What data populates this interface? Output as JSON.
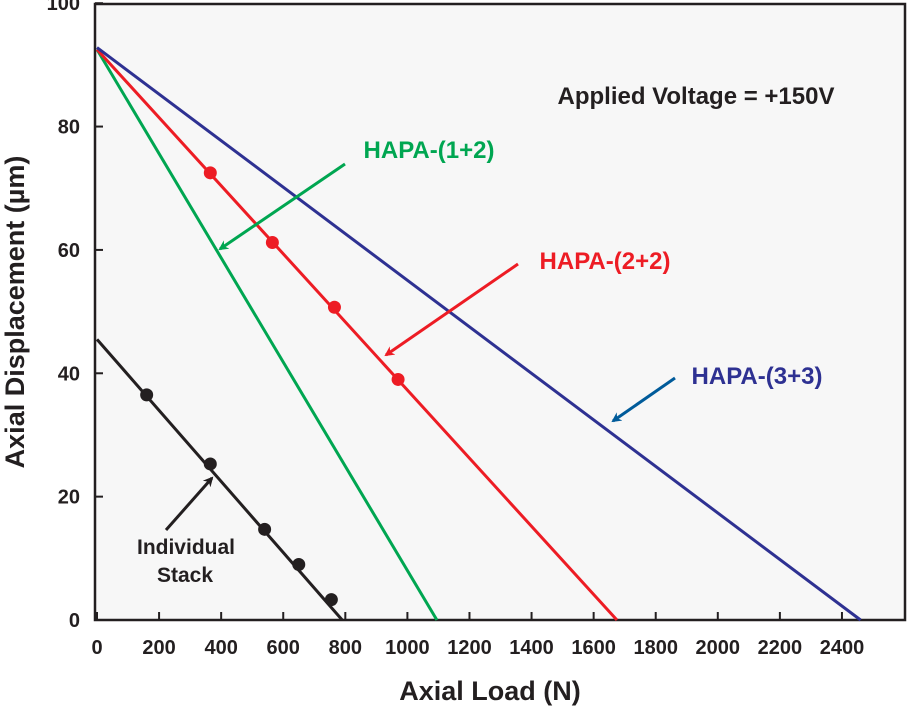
{
  "chart_data": {
    "type": "line",
    "title": "",
    "xlabel": "Axial Load (N)",
    "ylabel": "Axial Displacement (µm)",
    "xlim": [
      0,
      2500
    ],
    "ylim": [
      0,
      100
    ],
    "xticks": [
      0,
      200,
      400,
      600,
      800,
      1000,
      1200,
      1400,
      1600,
      1800,
      2000,
      2200,
      2400
    ],
    "yticks": [
      0,
      20,
      40,
      60,
      80,
      100
    ],
    "grid": false,
    "legend": "none",
    "annotation": "Applied Voltage = +150V",
    "series": [
      {
        "name": "Individual Stack",
        "color": "#231f20",
        "line": [
          [
            0,
            45.5
          ],
          [
            790,
            0
          ]
        ],
        "points": [
          [
            160,
            36.5
          ],
          [
            365,
            25.3
          ],
          [
            540,
            14.7
          ],
          [
            650,
            9.0
          ],
          [
            755,
            3.3
          ]
        ]
      },
      {
        "name": "HAPA-(1+2)",
        "color": "#00a651",
        "line": [
          [
            0,
            92.5
          ],
          [
            1095,
            0
          ]
        ],
        "points": []
      },
      {
        "name": "HAPA-(2+2)",
        "color": "#ed1c24",
        "line": [
          [
            0,
            92.5
          ],
          [
            1675,
            0
          ]
        ],
        "points": [
          [
            365,
            72.5
          ],
          [
            565,
            61.2
          ],
          [
            765,
            50.7
          ],
          [
            970,
            39.0
          ]
        ]
      },
      {
        "name": "HAPA-(3+3)",
        "color": "#2e3192",
        "line": [
          [
            0,
            92.8
          ],
          [
            2460,
            0
          ]
        ],
        "points": []
      }
    ],
    "labels": [
      {
        "text": "Individual",
        "series": 0
      },
      {
        "text": "Stack",
        "series": 0
      },
      {
        "text": "HAPA-(1+2)",
        "series": 1
      },
      {
        "text": "HAPA-(2+2)",
        "series": 2
      },
      {
        "text": "HAPA-(3+3)",
        "series": 3
      }
    ],
    "arrow_colors": [
      "#231f20",
      "#00a651",
      "#ed1c24",
      "#005b9a"
    ]
  }
}
